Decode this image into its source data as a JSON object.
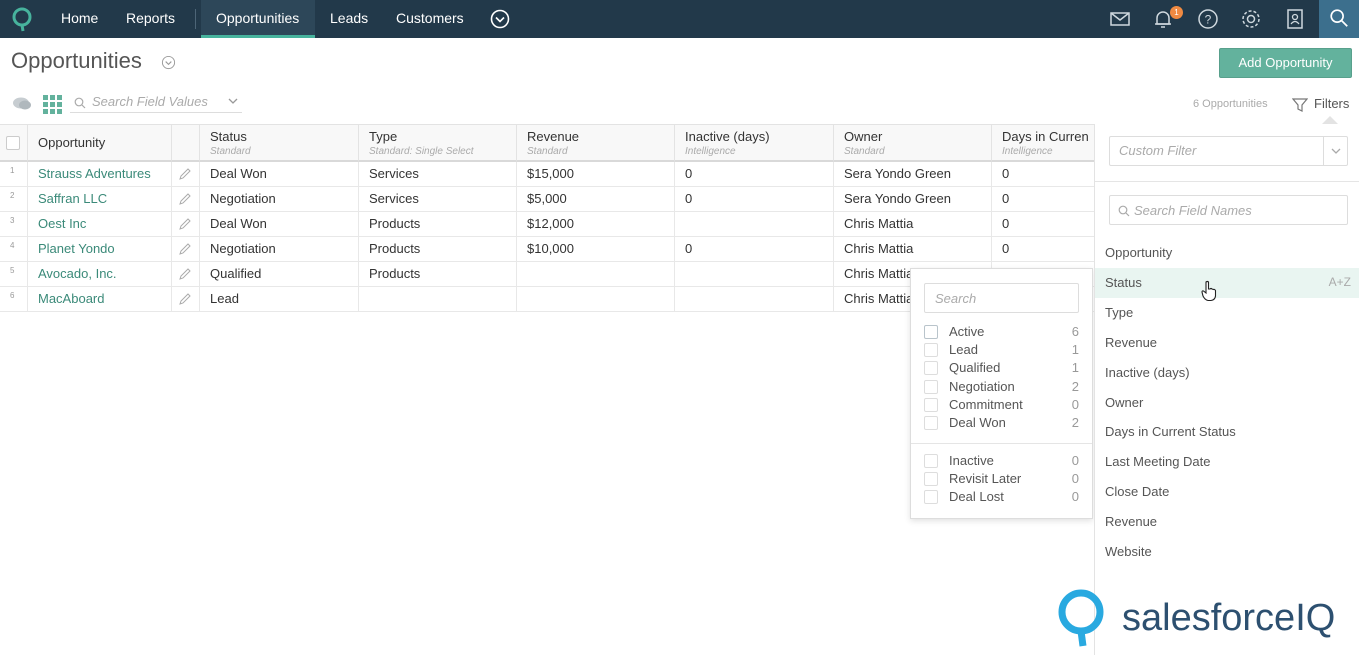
{
  "nav": {
    "items": [
      "Home",
      "Reports",
      "Opportunities",
      "Leads",
      "Customers"
    ],
    "notification_count": "1",
    "colors": {
      "bar": "#22394a",
      "accent": "#47b39d",
      "search": "#3c6f8d"
    }
  },
  "header": {
    "title": "Opportunities",
    "add_button": "Add Opportunity"
  },
  "toolbar": {
    "search_placeholder": "Search Field Values",
    "count": "6 Opportunities",
    "filters": "Filters"
  },
  "table": {
    "columns": [
      {
        "title": "Opportunity",
        "sub": ""
      },
      {
        "title": "Status",
        "sub": "Standard"
      },
      {
        "title": "Type",
        "sub": "Standard: Single Select"
      },
      {
        "title": "Revenue",
        "sub": "Standard"
      },
      {
        "title": "Inactive (days)",
        "sub": "Intelligence"
      },
      {
        "title": "Owner",
        "sub": "Standard"
      },
      {
        "title": "Days in Curren",
        "sub": "Intelligence"
      }
    ],
    "rows": [
      {
        "n": "1",
        "name": "Strauss Adventures",
        "status": "Deal Won",
        "type": "Services",
        "revenue": "$15,000",
        "inactive": "0",
        "owner": "Sera Yondo Green",
        "days": "0"
      },
      {
        "n": "2",
        "name": "Saffran LLC",
        "status": "Negotiation",
        "type": "Services",
        "revenue": "$5,000",
        "inactive": "0",
        "owner": "Sera Yondo Green",
        "days": "0"
      },
      {
        "n": "3",
        "name": "Oest Inc",
        "status": "Deal Won",
        "type": "Products",
        "revenue": "$12,000",
        "inactive": "",
        "owner": "Chris Mattia",
        "days": "0"
      },
      {
        "n": "4",
        "name": "Planet Yondo",
        "status": "Negotiation",
        "type": "Products",
        "revenue": "$10,000",
        "inactive": "0",
        "owner": "Chris Mattia",
        "days": "0"
      },
      {
        "n": "5",
        "name": "Avocado, Inc.",
        "status": "Qualified",
        "type": "Products",
        "revenue": "",
        "inactive": "",
        "owner": "Chris Mattia",
        "days": ""
      },
      {
        "n": "6",
        "name": "MacAboard",
        "status": "Lead",
        "type": "",
        "revenue": "",
        "inactive": "",
        "owner": "Chris Mattia",
        "days": ""
      }
    ]
  },
  "status_popup": {
    "search_placeholder": "Search",
    "options": [
      {
        "label": "Active",
        "count": "6"
      },
      {
        "label": "Lead",
        "count": "1"
      },
      {
        "label": "Qualified",
        "count": "1"
      },
      {
        "label": "Negotiation",
        "count": "2"
      },
      {
        "label": "Commitment",
        "count": "0"
      },
      {
        "label": "Deal Won",
        "count": "2"
      }
    ],
    "inactive_options": [
      {
        "label": "Inactive",
        "count": "0"
      },
      {
        "label": "Revisit Later",
        "count": "0"
      },
      {
        "label": "Deal Lost",
        "count": "0"
      }
    ]
  },
  "filter_panel": {
    "custom_filter_placeholder": "Custom Filter",
    "search_placeholder": "Search Field Names",
    "fields": [
      "Opportunity",
      "Status",
      "Type",
      "Revenue",
      "Inactive (days)",
      "Owner",
      "Days in Current Status",
      "Last Meeting Date",
      "Close Date",
      "Revenue",
      "Website"
    ],
    "sort_label": "A+Z"
  },
  "brand": {
    "name": "salesforceIQ"
  }
}
